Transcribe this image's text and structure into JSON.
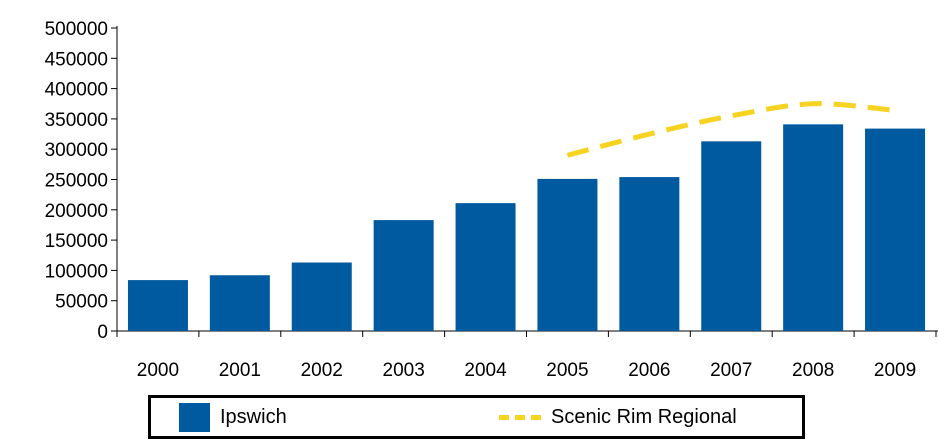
{
  "chart_data": {
    "type": "bar",
    "categories": [
      "2000",
      "2001",
      "2002",
      "2003",
      "2004",
      "2005",
      "2006",
      "2007",
      "2008",
      "2009"
    ],
    "series": [
      {
        "name": "Ipswich",
        "type": "bar",
        "color": "#005aa0",
        "values": [
          84000,
          92000,
          113000,
          183000,
          211000,
          251000,
          254000,
          313000,
          341000,
          334000
        ]
      },
      {
        "name": "Scenic Rim Regional",
        "type": "line",
        "style": "dashed",
        "color": "#f5d320",
        "values": [
          null,
          null,
          null,
          null,
          null,
          290000,
          325000,
          355000,
          375000,
          364000
        ]
      }
    ],
    "ylim": [
      0,
      500000
    ],
    "yticks": [
      "500000",
      "450000",
      "400000",
      "350000",
      "300000",
      "250000",
      "200000",
      "150000",
      "100000",
      "50000",
      "0"
    ],
    "grid": false,
    "legend_position": "bottom"
  }
}
